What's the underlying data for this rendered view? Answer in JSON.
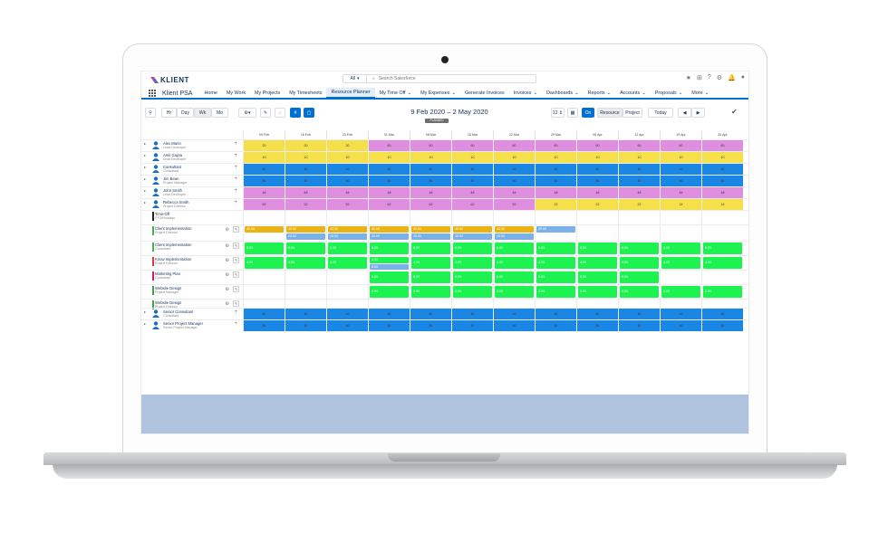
{
  "header": {
    "logo": "KLIENT",
    "search_scope": "All",
    "search_placeholder": "Search Salesforce"
  },
  "nav": {
    "app": "Klient PSA",
    "items": [
      "Home",
      "My Work",
      "My Projects",
      "My Timesheets",
      "Resource Planner",
      "My Time Off",
      "My Expenses",
      "Generate Invoices",
      "Invoices",
      "Dashboards",
      "Reports",
      "Accounts",
      "Proposals",
      "More"
    ],
    "active": "Resource Planner"
  },
  "toolbar": {
    "views": [
      "Hr",
      "Day",
      "Wk",
      "Mo"
    ],
    "active_view": "Wk",
    "range": "9 Feb 2020 – 2 May 2020",
    "planned": "PLANNED",
    "weeks": "12",
    "on": "On",
    "toggle": [
      "Resource",
      "Project"
    ],
    "today": "Today",
    "hash": "#"
  },
  "dates": [
    "09 Feb",
    "16 Feb",
    "23 Feb",
    "01 Mar",
    "08 Mar",
    "15 Mar",
    "22 Mar",
    "29 Mar",
    "05 Apr",
    "12 Apr",
    "19 Apr",
    "26 Apr"
  ],
  "colors": {
    "pink": "#e08ee0",
    "yellow": "#f5e04b",
    "blue": "#1b87e5",
    "green": "#1cf250",
    "orange": "#e9b314",
    "lightblue": "#7ab1e8",
    "nav_accent": "#0070d2"
  },
  "rows": [
    {
      "name": "Alex Mann",
      "sub": "Lead Developer",
      "values": [
        "20",
        "20",
        "20",
        "60",
        "60",
        "60",
        "60",
        "60",
        "60",
        "60",
        "60",
        "60"
      ],
      "colors": [
        "y",
        "y",
        "y",
        "p",
        "p",
        "p",
        "p",
        "p",
        "p",
        "p",
        "p",
        "p"
      ]
    },
    {
      "name": "Amit Gupta",
      "sub": "Lead Developer",
      "values": [
        "10",
        "10",
        "10",
        "10",
        "10",
        "10",
        "10",
        "10",
        "10",
        "10",
        "10",
        "10"
      ],
      "colors": [
        "y",
        "y",
        "y",
        "y",
        "y",
        "y",
        "y",
        "y",
        "y",
        "y",
        "y",
        "y"
      ]
    },
    {
      "name": "Consultant",
      "sub": "Consultant",
      "values": [
        "40",
        "40",
        "40",
        "40",
        "40",
        "40",
        "40",
        "40",
        "40",
        "40",
        "40",
        "40"
      ],
      "colors": [
        "b",
        "b",
        "b",
        "b",
        "b",
        "b",
        "b",
        "b",
        "b",
        "b",
        "b",
        "b"
      ]
    },
    {
      "name": "Jim Bean",
      "sub": "Project Manager",
      "values": [
        "40",
        "40",
        "40",
        "40",
        "40",
        "40",
        "40",
        "40",
        "40",
        "40",
        "40",
        "40"
      ],
      "colors": [
        "b",
        "b",
        "b",
        "b",
        "b",
        "b",
        "b",
        "b",
        "b",
        "b",
        "b",
        "b"
      ]
    },
    {
      "name": "John Smith",
      "sub": "Lead Developer",
      "values": [
        "48",
        "48",
        "48",
        "48",
        "48",
        "48",
        "48",
        "48",
        "48",
        "48",
        "48",
        "48"
      ],
      "colors": [
        "p",
        "p",
        "p",
        "p",
        "p",
        "p",
        "p",
        "p",
        "p",
        "p",
        "p",
        "p"
      ]
    },
    {
      "name": "Rebecca Smith",
      "sub": "Project Director",
      "values": [
        "52",
        "52",
        "52",
        "62",
        "62",
        "62",
        "52",
        "22",
        "22",
        "22",
        "14",
        "14"
      ],
      "colors": [
        "p",
        "p",
        "p",
        "p",
        "p",
        "p",
        "p",
        "y",
        "y",
        "y",
        "y",
        "y"
      ]
    }
  ],
  "timeoff": {
    "name": "Time-Off",
    "sub": "PTO/Holidays"
  },
  "projects": [
    {
      "name": "Client Implementation",
      "sub": "Project Director",
      "bar": "#4caf50"
    },
    {
      "name": "Client Implementation",
      "sub": "Consultant",
      "bar": "#4caf50"
    },
    {
      "name": "Know Implementation",
      "sub": "Project Director",
      "bar": "#e53935"
    },
    {
      "name": "Marketing Plan",
      "sub": "Consultant",
      "bar": "#d81b60"
    },
    {
      "name": "Website Design",
      "sub": "Project Manager",
      "bar": "#43a047"
    },
    {
      "name": "Website Design",
      "sub": "Project Director",
      "bar": "#43a047"
    }
  ],
  "project_values": {
    "p0_top": [
      "40.00",
      "40.00",
      "40.00",
      "40.00",
      "40.00",
      "40.00",
      "40.00"
    ],
    "p0_bottom": [
      "25.00",
      "25.00",
      "25.00",
      "25.00",
      "25.00",
      "25.00",
      "25.00"
    ],
    "p1": [
      "8.00",
      "8.00",
      "8.00",
      "8.00",
      "8.00",
      "8.00",
      "8.00",
      "8.00",
      "8.00",
      "8.00",
      "8.00",
      "8.00"
    ],
    "p2": [
      "4.00",
      "4.00",
      "4.00",
      "4.00",
      "4.00",
      "4.00",
      "4.00",
      "4.00",
      "4.00",
      "4.00",
      "4.00",
      "4.00"
    ],
    "p2_extra": "8.00",
    "p3": [
      "8.00",
      "8.00",
      "8.00",
      "8.00",
      "8.00",
      "8.00",
      "8.00"
    ],
    "p4": [
      "2.00",
      "2.00",
      "2.00",
      "2.00",
      "2.00",
      "2.00",
      "2.00",
      "2.00",
      "2.00"
    ]
  },
  "bottom_rows": [
    {
      "name": "Senior Consultant",
      "sub": "Consultant",
      "value": "40"
    },
    {
      "name": "Senior Project Manager",
      "sub": "Senior Project Manager",
      "value": "40"
    }
  ]
}
